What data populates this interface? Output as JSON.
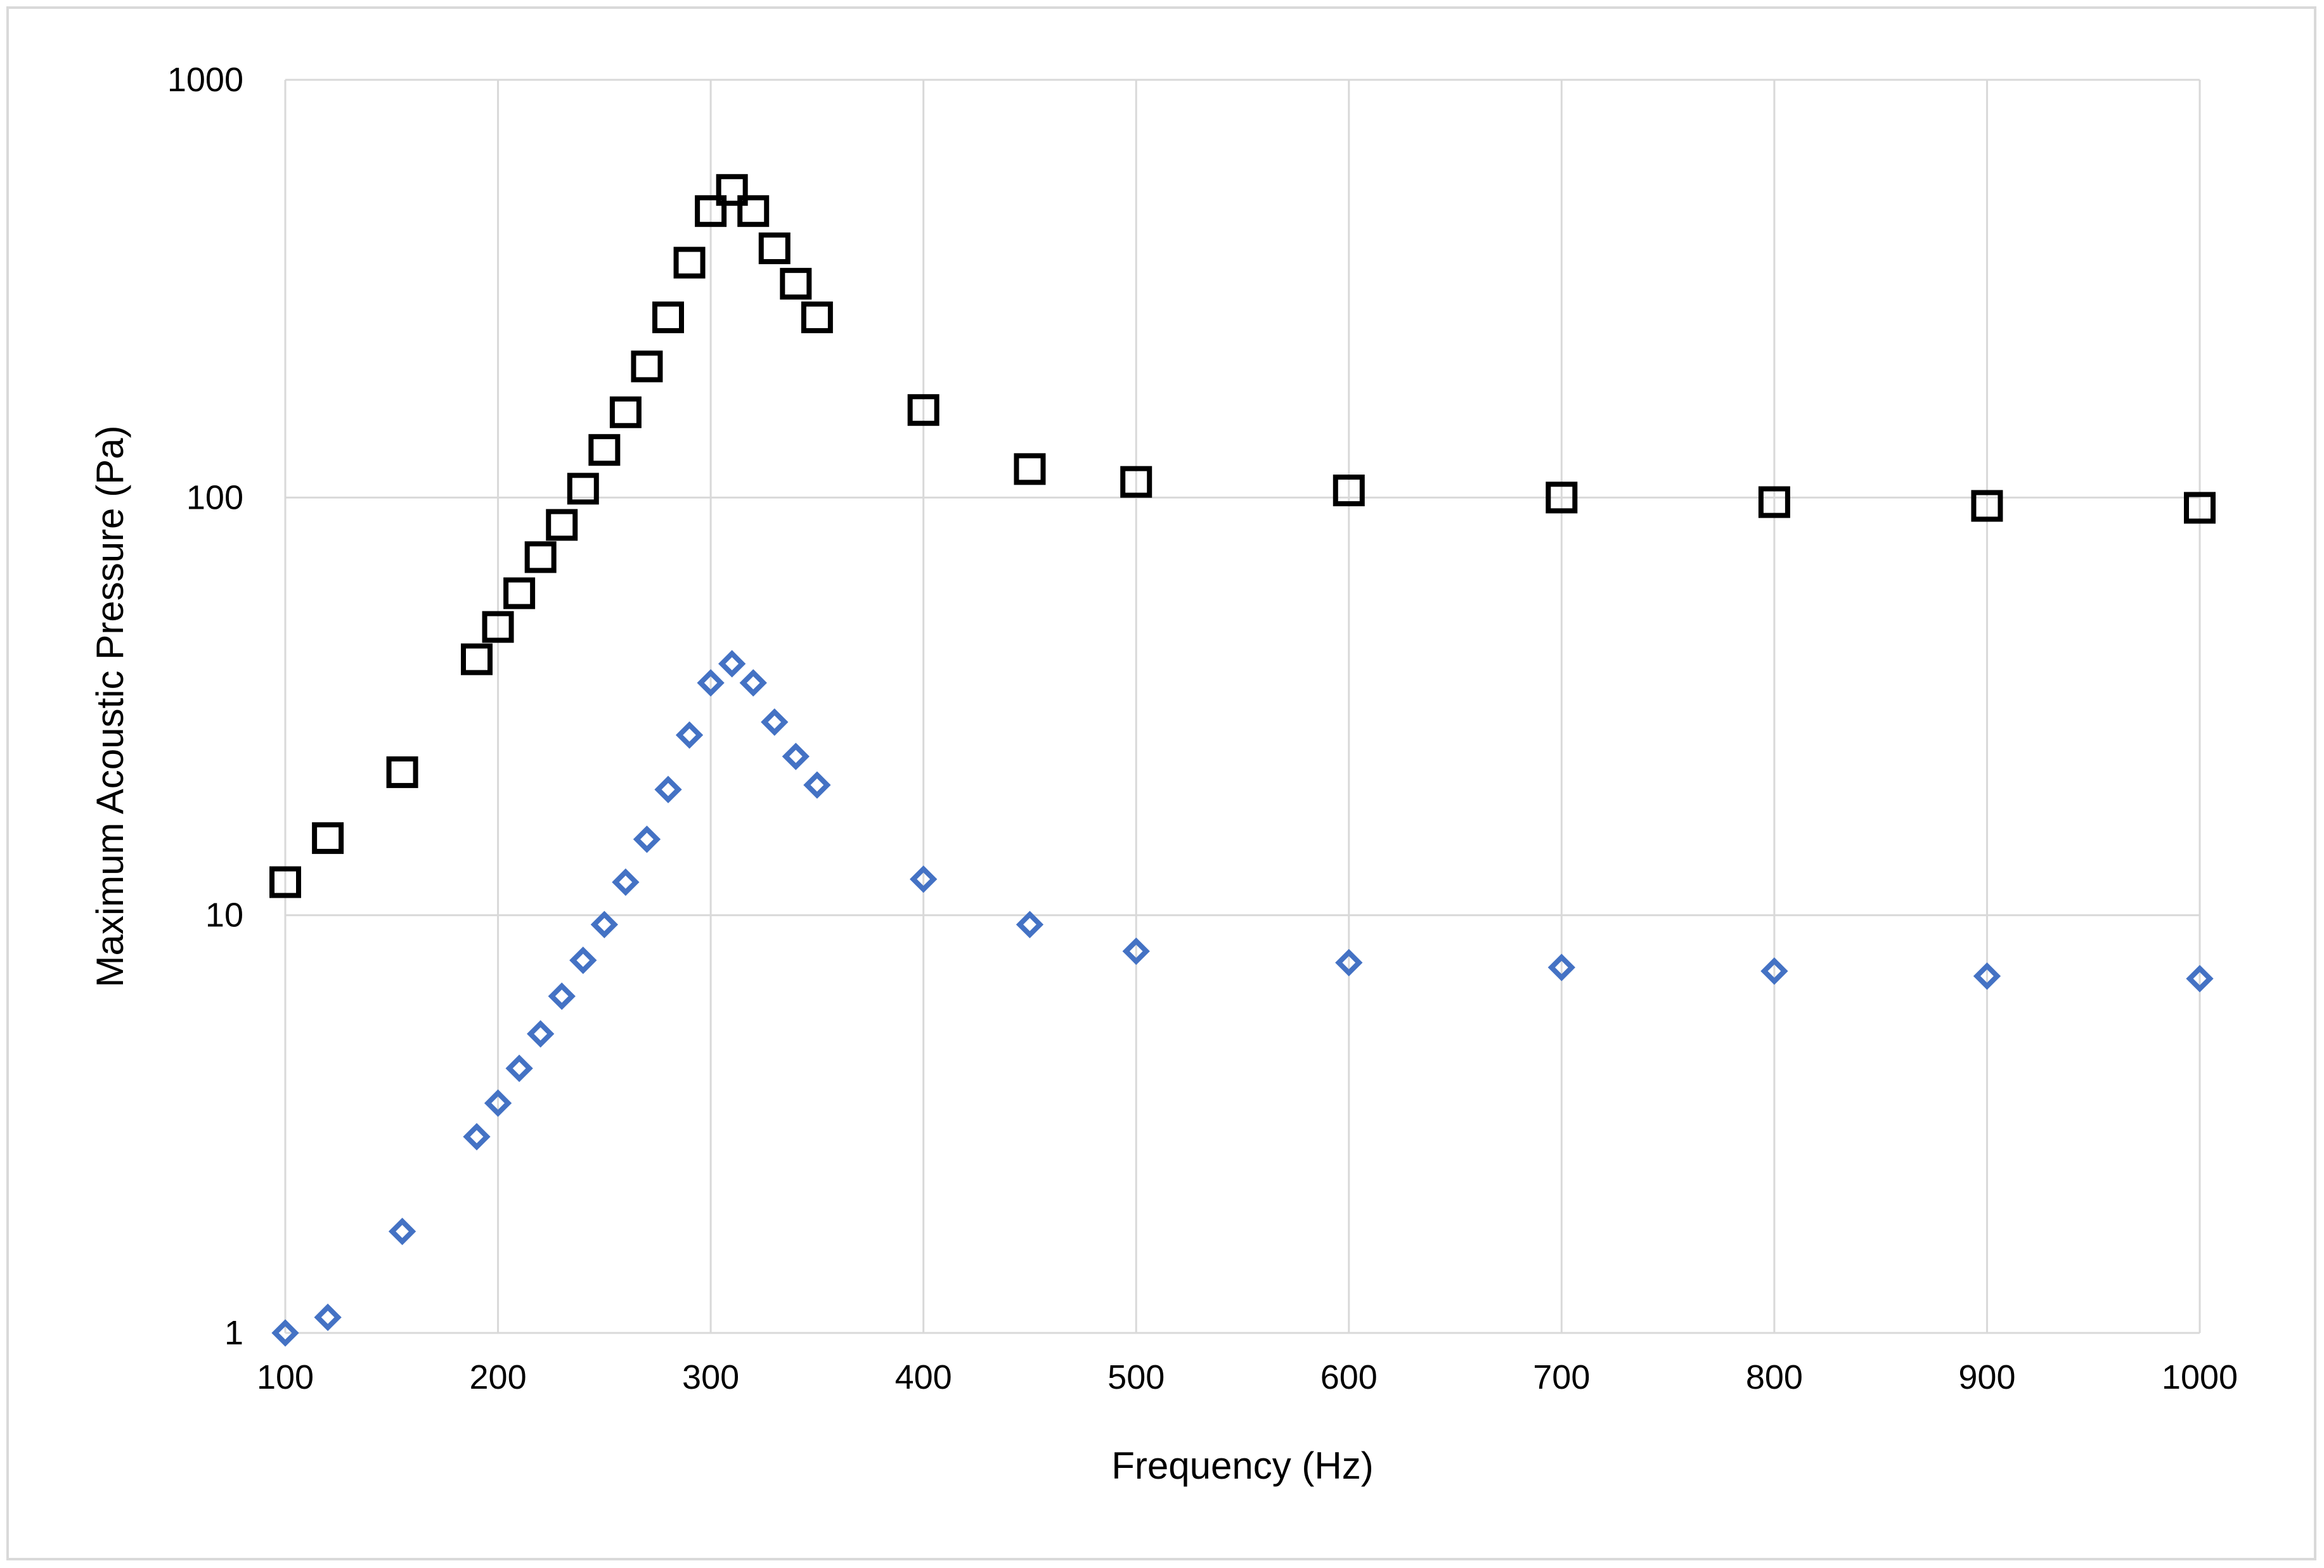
{
  "chart_data": {
    "type": "scatter",
    "title": "",
    "xlabel": "Frequency (Hz)",
    "ylabel": "Maximum Acoustic Pressure (Pa)",
    "xlim": [
      100,
      1000
    ],
    "ylim": [
      1,
      1000
    ],
    "yscale": "log",
    "x_ticks": [
      100,
      200,
      300,
      400,
      500,
      600,
      700,
      800,
      900,
      1000
    ],
    "y_ticks": [
      1,
      10,
      100,
      1000
    ],
    "x_tick_labels": [
      "100",
      "200",
      "300",
      "400",
      "500",
      "600",
      "700",
      "800",
      "900",
      "1000"
    ],
    "y_tick_labels": [
      "1",
      "10",
      "100",
      "1000"
    ],
    "grid": "vertical",
    "legend": "none",
    "series": [
      {
        "marker": "square",
        "color": "#000000",
        "points": [
          [
            100,
            12
          ],
          [
            120,
            15.3
          ],
          [
            155,
            22
          ],
          [
            190,
            41
          ],
          [
            200,
            49
          ],
          [
            210,
            59
          ],
          [
            220,
            72
          ],
          [
            230,
            86
          ],
          [
            240,
            105
          ],
          [
            250,
            130
          ],
          [
            260,
            160
          ],
          [
            270,
            206
          ],
          [
            280,
            270
          ],
          [
            290,
            365
          ],
          [
            300,
            485
          ],
          [
            310,
            545
          ],
          [
            320,
            485
          ],
          [
            330,
            395
          ],
          [
            340,
            325
          ],
          [
            350,
            270
          ],
          [
            400,
            162
          ],
          [
            450,
            117
          ],
          [
            500,
            109
          ],
          [
            600,
            104
          ],
          [
            700,
            100
          ],
          [
            800,
            97.5
          ],
          [
            900,
            95.5
          ],
          [
            1000,
            94.5
          ]
        ]
      },
      {
        "marker": "diamond",
        "color": "#4472c4",
        "points": [
          [
            100,
            1.0
          ],
          [
            120,
            1.09
          ],
          [
            155,
            1.75
          ],
          [
            190,
            2.95
          ],
          [
            200,
            3.55
          ],
          [
            210,
            4.3
          ],
          [
            220,
            5.2
          ],
          [
            230,
            6.4
          ],
          [
            240,
            7.8
          ],
          [
            250,
            9.5
          ],
          [
            260,
            12
          ],
          [
            270,
            15.2
          ],
          [
            280,
            20
          ],
          [
            290,
            27
          ],
          [
            300,
            36
          ],
          [
            310,
            40
          ],
          [
            320,
            36
          ],
          [
            330,
            29
          ],
          [
            340,
            24
          ],
          [
            350,
            20.5
          ],
          [
            400,
            12.2
          ],
          [
            450,
            9.5
          ],
          [
            500,
            8.2
          ],
          [
            600,
            7.7
          ],
          [
            700,
            7.5
          ],
          [
            800,
            7.35
          ],
          [
            900,
            7.15
          ],
          [
            1000,
            7.05
          ]
        ]
      }
    ]
  }
}
